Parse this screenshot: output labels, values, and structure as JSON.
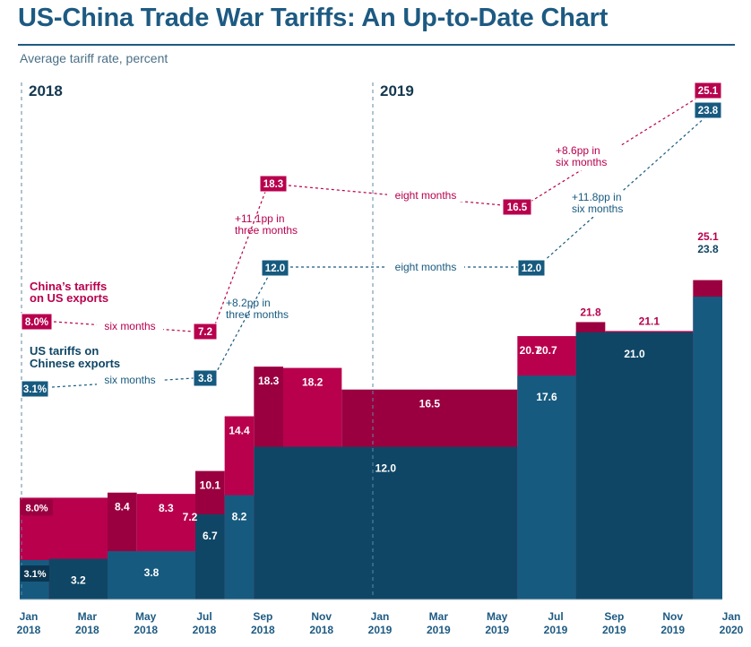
{
  "title": "US-China Trade War Tariffs: An Up-to-Date Chart",
  "subtitle": "Average tariff rate, percent",
  "year_labels": [
    "2018",
    "2019"
  ],
  "colors": {
    "us": "#175a7f",
    "us_dark": "#0f4665",
    "china": "#b8004d",
    "china_dark": "#9a0040",
    "title": "#1d5a82",
    "axis_text": "#1d5a82"
  },
  "chart_data": {
    "type": "area",
    "title": "US-China Trade War Tariffs: An Up-to-Date Chart",
    "ylabel": "Average tariff rate, percent",
    "x_tick_labels": [
      {
        "month": "Jan",
        "year": "2018"
      },
      {
        "month": "Mar",
        "year": "2018"
      },
      {
        "month": "May",
        "year": "2018"
      },
      {
        "month": "Jul",
        "year": "2018"
      },
      {
        "month": "Sep",
        "year": "2018"
      },
      {
        "month": "Nov",
        "year": "2018"
      },
      {
        "month": "Jan",
        "year": "2019"
      },
      {
        "month": "Mar",
        "year": "2019"
      },
      {
        "month": "May",
        "year": "2019"
      },
      {
        "month": "Jul",
        "year": "2019"
      },
      {
        "month": "Sep",
        "year": "2019"
      },
      {
        "month": "Nov",
        "year": "2019"
      },
      {
        "month": "Jan",
        "year": "2020"
      }
    ],
    "series": [
      {
        "name": "US tariffs on Chinese exports",
        "steps": [
          {
            "start": "2018-01",
            "end": "2018-02",
            "value": 3.1,
            "label": "3.1%"
          },
          {
            "start": "2018-02",
            "end": "2018-04",
            "value": 3.2,
            "label": "3.2"
          },
          {
            "start": "2018-04",
            "end": "2018-07",
            "value": 3.8,
            "label": "3.8"
          },
          {
            "start": "2018-07",
            "end": "2018-08",
            "value": 6.7,
            "label": "6.7"
          },
          {
            "start": "2018-08",
            "end": "2018-09",
            "value": 8.2,
            "label": "8.2"
          },
          {
            "start": "2018-09",
            "end": "2019-06",
            "value": 12.0,
            "label": "12.0"
          },
          {
            "start": "2019-06",
            "end": "2019-08",
            "value": 17.6,
            "label": "17.6"
          },
          {
            "start": "2019-08",
            "end": "2019-12",
            "value": 21.0,
            "label": "21.0"
          },
          {
            "start": "2019-12",
            "end": "2020-01",
            "value": 23.8,
            "label": "23.8"
          }
        ]
      },
      {
        "name": "China's tariffs on US exports",
        "steps": [
          {
            "start": "2018-01",
            "end": "2018-04",
            "value": 8.0,
            "label": "8.0%"
          },
          {
            "start": "2018-04",
            "end": "2018-05",
            "value": 8.4,
            "label": "8.4"
          },
          {
            "start": "2018-05",
            "end": "2018-07",
            "value": 8.3,
            "label": "8.3"
          },
          {
            "start": "2018-07",
            "end": "2018-08",
            "value": 10.1,
            "label": "10.1",
            "corner_label": "7.2"
          },
          {
            "start": "2018-08",
            "end": "2018-09",
            "value": 14.4,
            "label": "14.4"
          },
          {
            "start": "2018-09",
            "end": "2018-10",
            "value": 18.3,
            "label": "18.3"
          },
          {
            "start": "2018-10",
            "end": "2018-12",
            "value": 18.2,
            "label": "18.2"
          },
          {
            "start": "2018-12",
            "end": "2019-06",
            "value": 16.5,
            "label": "16.5"
          },
          {
            "start": "2019-06",
            "end": "2019-08",
            "value": 20.7,
            "label": "20.7",
            "start_label": "20.7"
          },
          {
            "start": "2019-08",
            "end": "2019-09",
            "value": 21.8,
            "label": "21.8"
          },
          {
            "start": "2019-09",
            "end": "2019-12",
            "value": 21.1,
            "label": "21.1"
          },
          {
            "start": "2019-12",
            "end": "2020-01",
            "value": 25.1,
            "label": "25.1"
          }
        ]
      }
    ],
    "annotations": {
      "china_label": [
        "China’s tariffs",
        "on US exports"
      ],
      "us_label": [
        "US tariffs on",
        "Chinese exports"
      ],
      "china_boxes": [
        "8.0%",
        "7.2",
        "18.3",
        "16.5",
        "25.1"
      ],
      "us_boxes": [
        "3.1%",
        "3.8",
        "12.0",
        "12.0",
        "23.8"
      ],
      "china_text": {
        "six_months": "six months",
        "three_months": [
          "+11.1pp in",
          "three months"
        ],
        "eight_months": "eight months",
        "six_months_2": [
          "+8.6pp in",
          "six months"
        ]
      },
      "us_text": {
        "six_months": "six months",
        "three_months": [
          "+8.2pp in",
          "three months"
        ],
        "eight_months": "eight months",
        "six_months_2": [
          "+11.8pp in",
          "six months"
        ]
      }
    }
  }
}
